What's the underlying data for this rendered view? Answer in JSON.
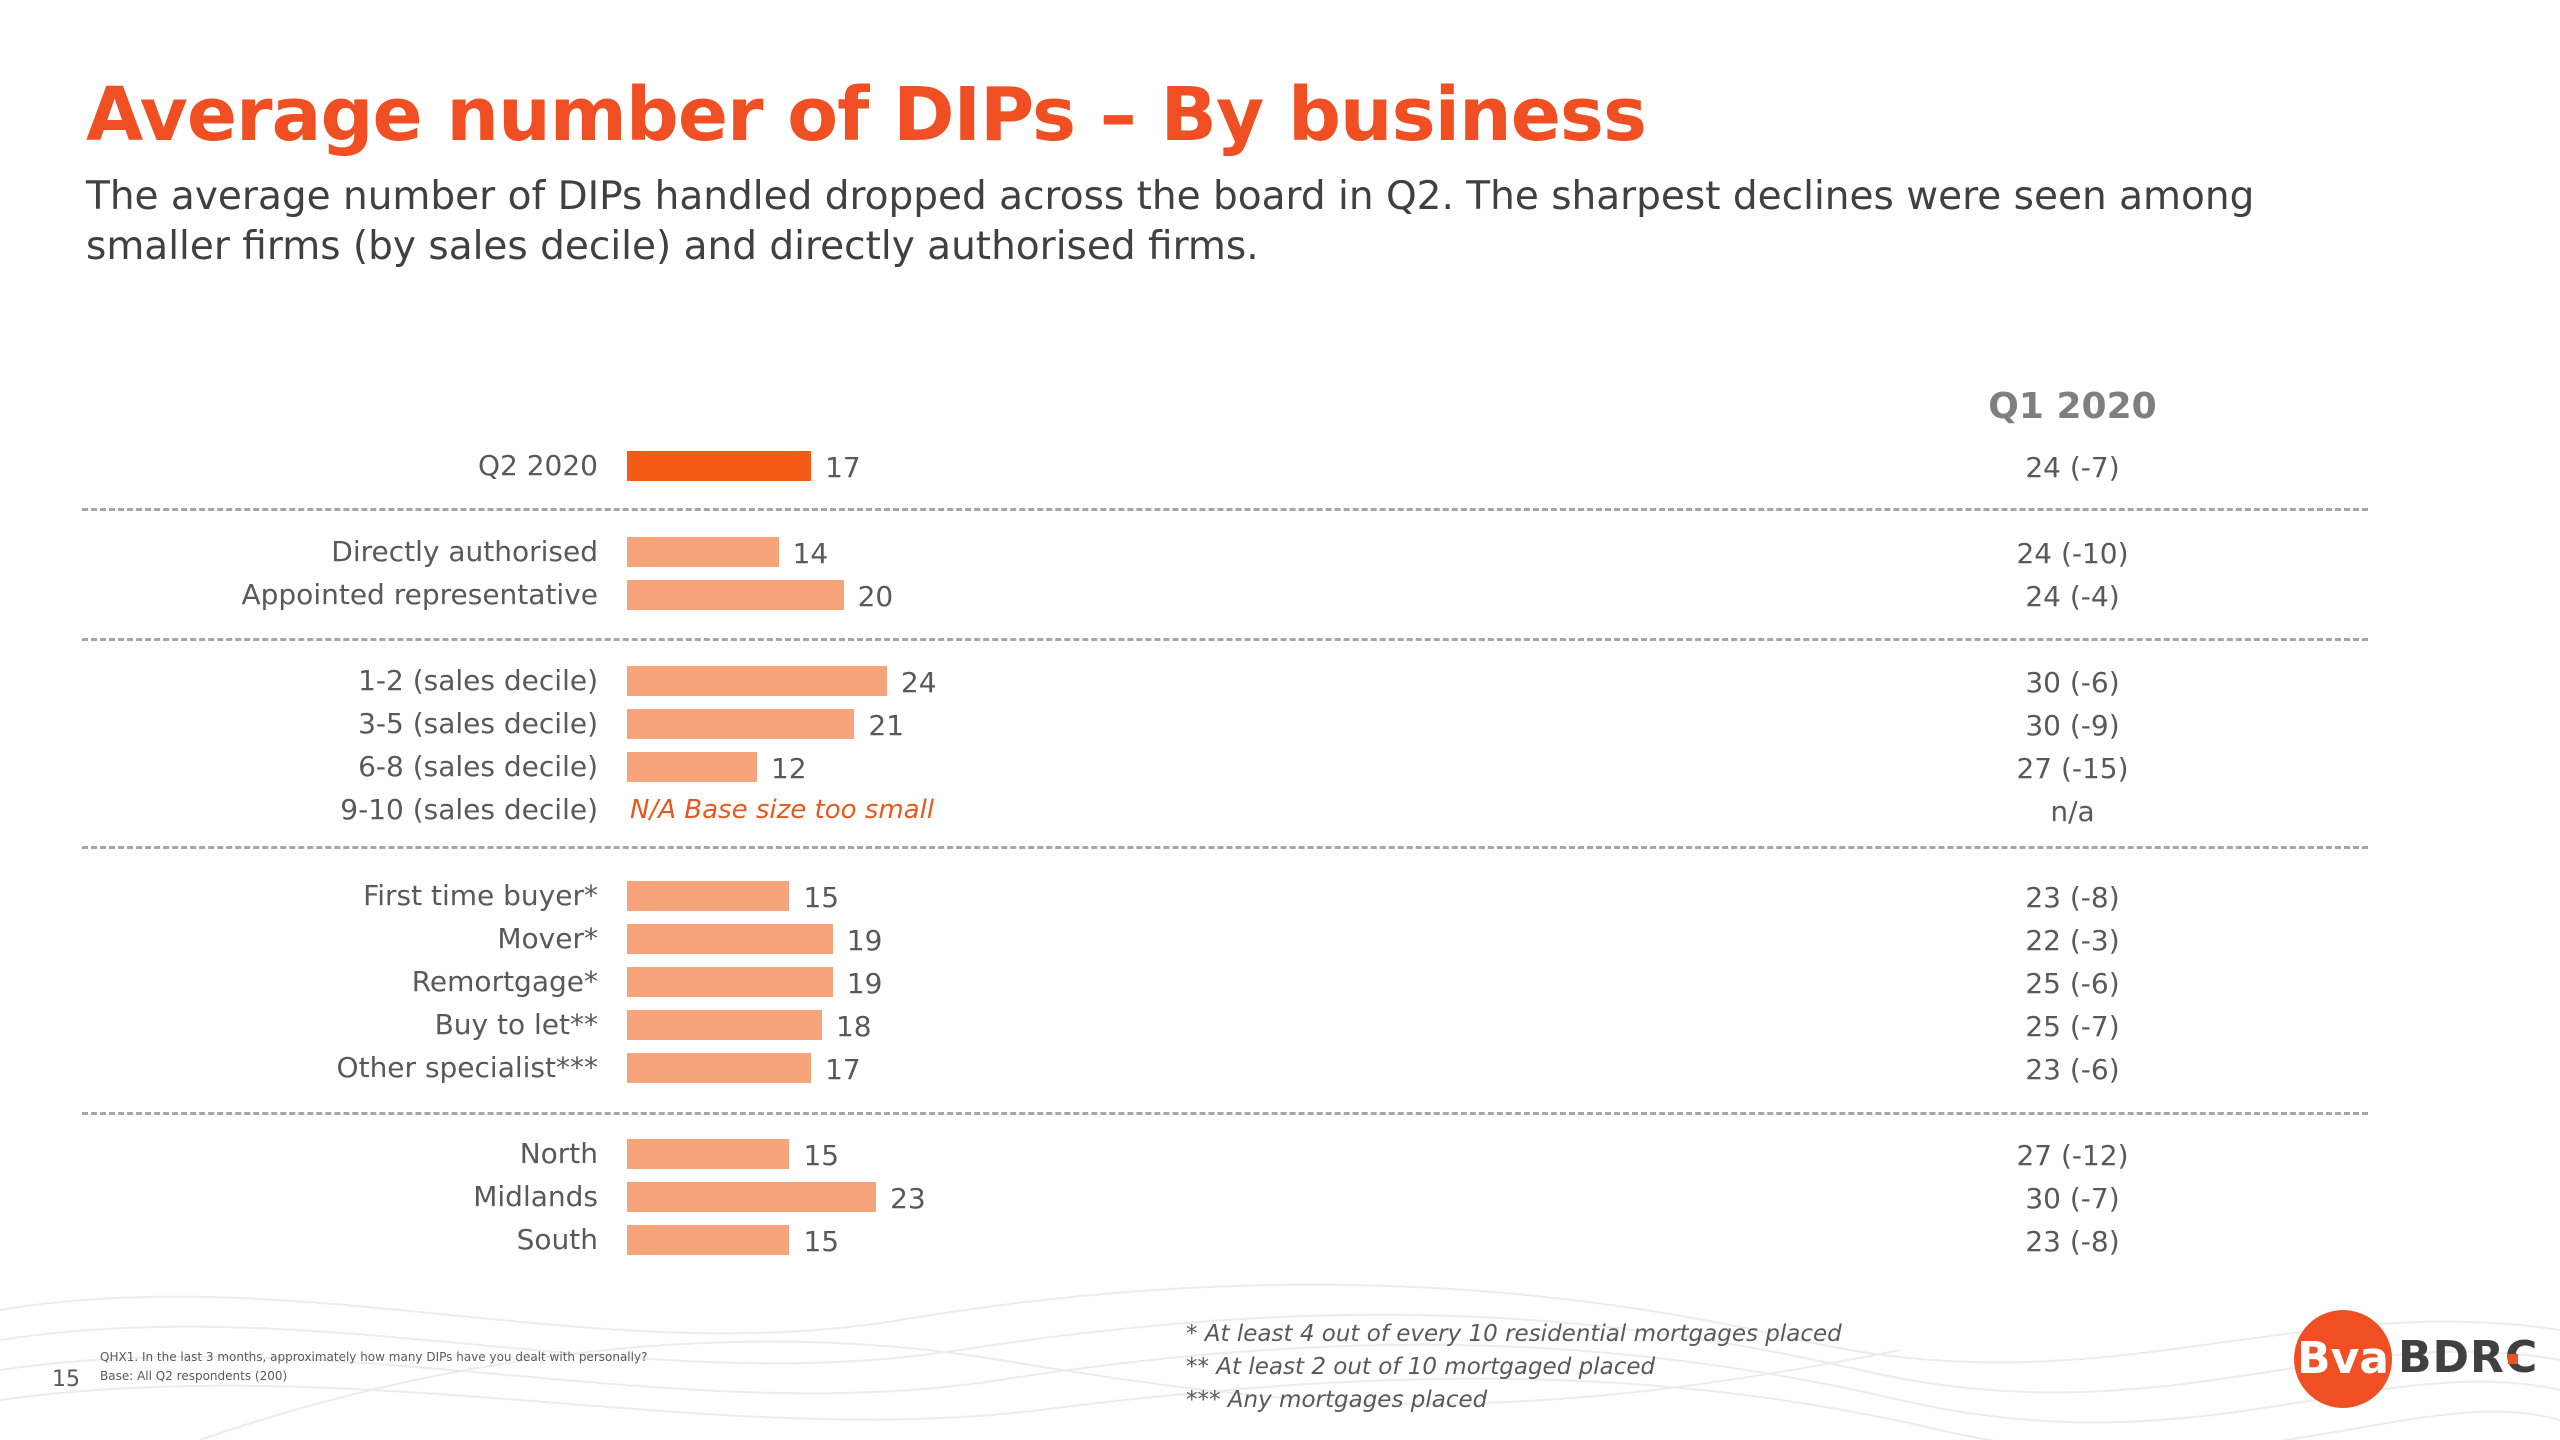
{
  "slide": {
    "title": "Average number of DIPs – By business",
    "subtitle": "The average number of DIPs handled dropped across the board in Q2. The sharpest declines were seen among smaller firms (by sales decile) and directly authorised firms.",
    "page_number": "15",
    "source_question": "QHX1. In the last 3 months, approximately how many DIPs have you dealt with personally?",
    "source_base": "Base: All Q2 respondents (200)",
    "footnotes": [
      "* At least 4 out of every 10 residential mortgages placed",
      "** At least 2 out of 10 mortgaged placed",
      "*** Any mortgages placed"
    ],
    "logo": {
      "mark": "Bva",
      "text": "BDRC",
      "color": "#f04e23"
    }
  },
  "chart_data": {
    "type": "bar",
    "orientation": "horizontal",
    "comparison_header": "Q1 2020",
    "na_note": "N/A Base size too small",
    "categories": [
      "Q2 2020",
      "Directly authorised",
      "Appointed representative",
      "1-2 (sales decile)",
      "3-5 (sales decile)",
      "6-8 (sales decile)",
      "9-10 (sales decile)",
      "First time buyer*",
      "Mover*",
      "Remortgage*",
      "Buy to let**",
      "Other specialist***",
      "North",
      "Midlands",
      "South"
    ],
    "values": [
      17,
      14,
      20,
      24,
      21,
      12,
      null,
      15,
      19,
      19,
      18,
      17,
      15,
      23,
      15
    ],
    "q1_2020": [
      "24 (-7)",
      "24 (-10)",
      "24 (-4)",
      "30 (-6)",
      "30 (-9)",
      "27 (-15)",
      "n/a",
      "23 (-8)",
      "22 (-3)",
      "25 (-6)",
      "25 (-7)",
      "23 (-6)",
      "27 (-12)",
      "30 (-7)",
      "23 (-8)"
    ],
    "groups": [
      [
        0
      ],
      [
        1,
        2
      ],
      [
        3,
        4,
        5,
        6
      ],
      [
        7,
        8,
        9,
        10,
        11
      ],
      [
        12,
        13,
        14
      ]
    ],
    "highlight_index": 0,
    "colors": {
      "highlight": "#f45b17",
      "bar": "#f8a47b",
      "na_text": "#e8581e"
    },
    "xlim": [
      0,
      24
    ],
    "grid": false
  }
}
